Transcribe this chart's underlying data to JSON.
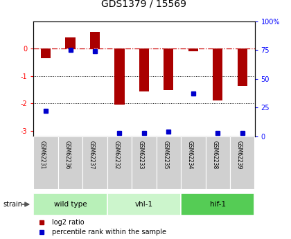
{
  "title": "GDS1379 / 15569",
  "samples": [
    "GSM62231",
    "GSM62236",
    "GSM62237",
    "GSM62232",
    "GSM62233",
    "GSM62235",
    "GSM62234",
    "GSM62238",
    "GSM62239"
  ],
  "log2_ratios": [
    -0.35,
    0.42,
    0.62,
    -2.05,
    -1.55,
    -1.5,
    -0.08,
    -1.9,
    -1.35
  ],
  "percentile_ranks": [
    22,
    75,
    74,
    3,
    3,
    4,
    37,
    3,
    3
  ],
  "groups": [
    {
      "label": "wild type",
      "start": 0,
      "end": 3,
      "color": "#b8f0b8"
    },
    {
      "label": "vhl-1",
      "start": 3,
      "end": 6,
      "color": "#ccf5cc"
    },
    {
      "label": "hif-1",
      "start": 6,
      "end": 9,
      "color": "#55cc55"
    }
  ],
  "ylim": [
    -3.2,
    1.0
  ],
  "y2lim": [
    0,
    100
  ],
  "bar_color": "#aa0000",
  "pct_color": "#0000cc",
  "zero_line_color": "#cc0000",
  "legend_items": [
    {
      "label": "log2 ratio",
      "color": "#aa0000"
    },
    {
      "label": "percentile rank within the sample",
      "color": "#0000cc"
    }
  ]
}
